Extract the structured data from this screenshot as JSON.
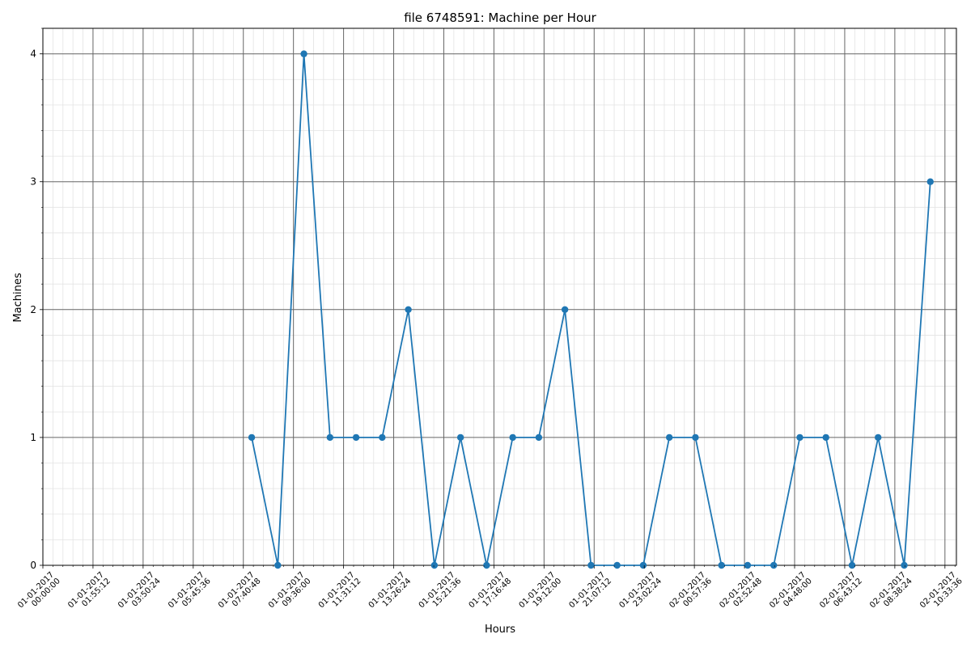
{
  "chart_data": {
    "type": "line",
    "title": "file 6748591: Machine per Hour",
    "xlabel": "Hours",
    "ylabel": "Machines",
    "xlim": [
      "2017-01-01T00:00:00",
      "2017-01-02T11:00:00"
    ],
    "ylim": [
      0,
      4.2
    ],
    "y_ticks": [
      0,
      1,
      2,
      3,
      4
    ],
    "x_ticks": [
      {
        "t": "2017-01-01T00:00:00",
        "line1": "01-01-2017",
        "line2": "00:00:00"
      },
      {
        "t": "2017-01-01T01:55:12",
        "line1": "01-01-2017",
        "line2": "01:55:12"
      },
      {
        "t": "2017-01-01T03:50:24",
        "line1": "01-01-2017",
        "line2": "03:50:24"
      },
      {
        "t": "2017-01-01T05:45:36",
        "line1": "01-01-2017",
        "line2": "05:45:36"
      },
      {
        "t": "2017-01-01T07:40:48",
        "line1": "01-01-2017",
        "line2": "07:40:48"
      },
      {
        "t": "2017-01-01T09:36:00",
        "line1": "01-01-2017",
        "line2": "09:36:00"
      },
      {
        "t": "2017-01-01T11:31:12",
        "line1": "01-01-2017",
        "line2": "11:31:12"
      },
      {
        "t": "2017-01-01T13:26:24",
        "line1": "01-01-2017",
        "line2": "13:26:24"
      },
      {
        "t": "2017-01-01T15:21:36",
        "line1": "01-01-2017",
        "line2": "15:21:36"
      },
      {
        "t": "2017-01-01T17:16:48",
        "line1": "01-01-2017",
        "line2": "17:16:48"
      },
      {
        "t": "2017-01-01T19:12:00",
        "line1": "01-01-2017",
        "line2": "19:12:00"
      },
      {
        "t": "2017-01-01T21:07:12",
        "line1": "01-01-2017",
        "line2": "21:07:12"
      },
      {
        "t": "2017-01-01T23:02:24",
        "line1": "01-01-2017",
        "line2": "23:02:24"
      },
      {
        "t": "2017-01-02T00:57:36",
        "line1": "02-01-2017",
        "line2": "00:57:36"
      },
      {
        "t": "2017-01-02T02:52:48",
        "line1": "02-01-2017",
        "line2": "02:52:48"
      },
      {
        "t": "2017-01-02T04:48:00",
        "line1": "02-01-2017",
        "line2": "04:48:00"
      },
      {
        "t": "2017-01-02T06:43:12",
        "line1": "02-01-2017",
        "line2": "06:43:12"
      },
      {
        "t": "2017-01-02T08:38:24",
        "line1": "02-01-2017",
        "line2": "08:38:24"
      },
      {
        "t": "2017-01-02T10:33:36",
        "line1": "02-01-2017",
        "line2": "10:33:36"
      }
    ],
    "grid": {
      "major": true,
      "minor": true
    },
    "series": [
      {
        "color": "#1f77b4",
        "marker": "circle",
        "x": [
          "2017-01-01T08:00:00",
          "2017-01-01T09:00:00",
          "2017-01-01T10:00:00",
          "2017-01-01T11:00:00",
          "2017-01-01T12:00:00",
          "2017-01-01T13:00:00",
          "2017-01-01T14:00:00",
          "2017-01-01T15:00:00",
          "2017-01-01T16:00:00",
          "2017-01-01T17:00:00",
          "2017-01-01T18:00:00",
          "2017-01-01T19:00:00",
          "2017-01-01T20:00:00",
          "2017-01-01T21:00:00",
          "2017-01-01T22:00:00",
          "2017-01-01T23:00:00",
          "2017-01-02T00:00:00",
          "2017-01-02T01:00:00",
          "2017-01-02T02:00:00",
          "2017-01-02T03:00:00",
          "2017-01-02T04:00:00",
          "2017-01-02T05:00:00",
          "2017-01-02T06:00:00",
          "2017-01-02T07:00:00",
          "2017-01-02T08:00:00",
          "2017-01-02T09:00:00",
          "2017-01-02T10:00:00"
        ],
        "y": [
          1,
          0,
          4,
          1,
          1,
          1,
          2,
          0,
          1,
          0,
          1,
          1,
          2,
          0,
          0,
          0,
          1,
          1,
          0,
          0,
          0,
          1,
          1,
          0,
          1,
          0,
          3
        ]
      }
    ]
  }
}
